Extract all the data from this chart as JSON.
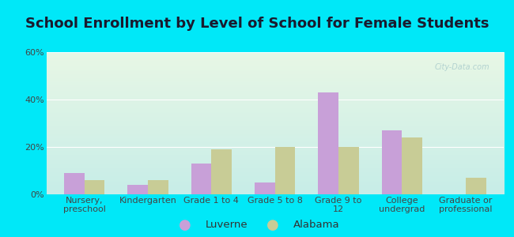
{
  "title": "School Enrollment by Level of School for Female Students",
  "categories": [
    "Nursery,\npreschool",
    "Kindergarten",
    "Grade 1 to 4",
    "Grade 5 to 8",
    "Grade 9 to\n12",
    "College\nundergrad",
    "Graduate or\nprofessional"
  ],
  "luverne": [
    9,
    4,
    13,
    5,
    43,
    27,
    0
  ],
  "alabama": [
    6,
    6,
    19,
    20,
    20,
    24,
    7
  ],
  "luverne_color": "#c8a0d8",
  "alabama_color": "#c8cc96",
  "background_outer": "#00e8f8",
  "ylim": [
    0,
    60
  ],
  "yticks": [
    0,
    20,
    40,
    60
  ],
  "ytick_labels": [
    "0%",
    "20%",
    "40%",
    "60%"
  ],
  "legend_labels": [
    "Luverne",
    "Alabama"
  ],
  "title_fontsize": 13,
  "tick_fontsize": 8,
  "legend_fontsize": 9.5,
  "bar_width": 0.32,
  "grid_color": "#ffffff",
  "inner_bg_top": "#e8f5e4",
  "inner_bg_bottom": "#c8eee8"
}
